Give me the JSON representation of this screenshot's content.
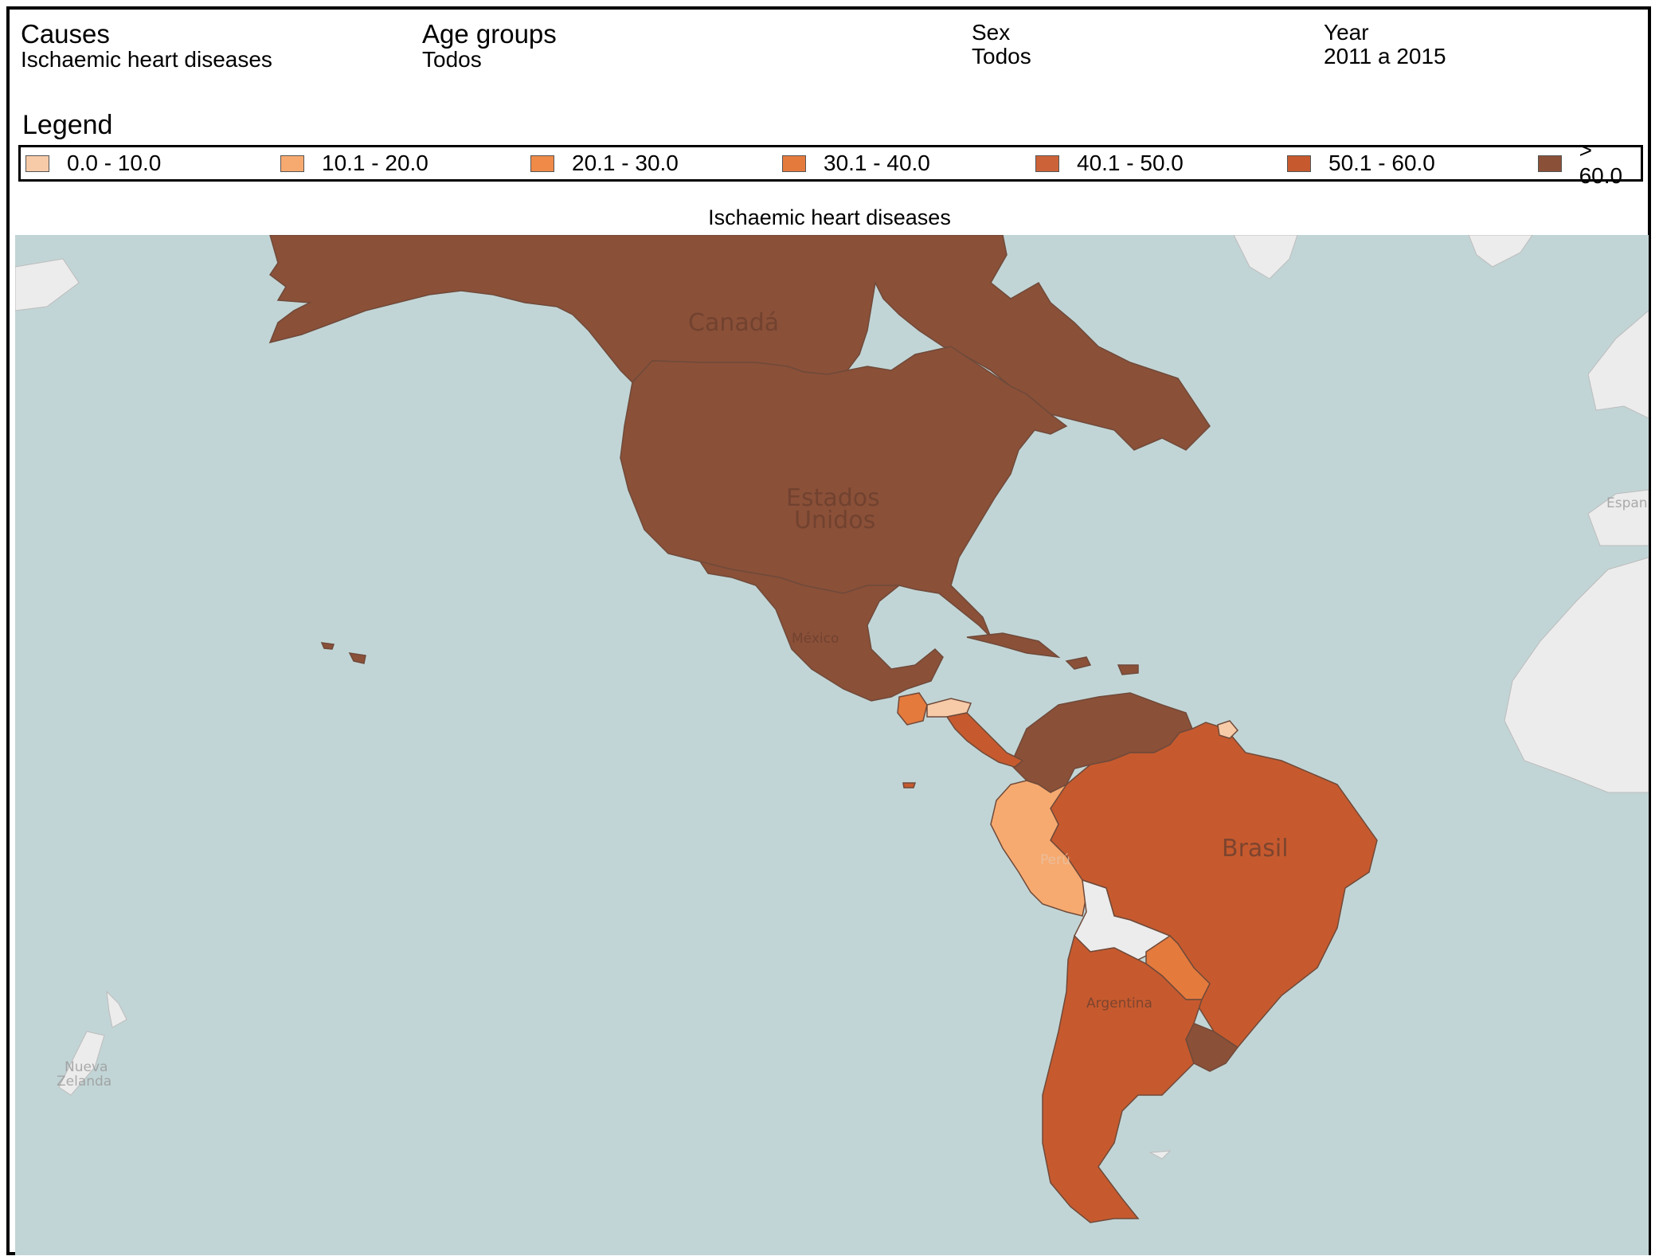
{
  "filters": {
    "causes": {
      "label": "Causes",
      "value": "Ischaemic heart diseases"
    },
    "age_groups": {
      "label": "Age groups",
      "value": "Todos"
    },
    "sex": {
      "label": "Sex",
      "value": "Todos"
    },
    "year": {
      "label": "Year",
      "value": "2011 a 2015"
    }
  },
  "legend": {
    "title": "Legend",
    "items": [
      {
        "label": "0.0 - 10.0",
        "color": "#f7cba8"
      },
      {
        "label": "10.1 - 20.0",
        "color": "#f7aa70"
      },
      {
        "label": "20.1 - 30.0",
        "color": "#ef8a48"
      },
      {
        "label": "30.1 - 40.0",
        "color": "#e57a3d"
      },
      {
        "label": "40.1 - 50.0",
        "color": "#cc6338"
      },
      {
        "label": "50.1 - 60.0",
        "color": "#c65a2e"
      },
      {
        "label": "> 60.0",
        "color": "#8b5038"
      }
    ]
  },
  "map": {
    "title": "Ischaemic heart diseases",
    "colors": {
      "ocean": "#c2d5d6",
      "other_land": "#ececec",
      "no_data": "#ececec"
    },
    "labels": [
      "Canadá",
      "Estados",
      "Unidos",
      "México",
      "Brasil",
      "Perú",
      "Argentina",
      "Nueva",
      "Zelanda",
      "Espan"
    ],
    "regions": [
      {
        "name": "Canada / Alaska",
        "class": "> 60.0"
      },
      {
        "name": "Estados Unidos",
        "class": "> 60.0"
      },
      {
        "name": "México",
        "class": "> 60.0"
      },
      {
        "name": "Cuba / Caribbean",
        "class": "> 60.0"
      },
      {
        "name": "Venezuela / Colombia",
        "class": "> 60.0"
      },
      {
        "name": "Brasil",
        "class": "50.1 - 60.0"
      },
      {
        "name": "Perú",
        "class": "10.1 - 20.0"
      },
      {
        "name": "Bolivia",
        "class": "no data"
      },
      {
        "name": "Paraguay",
        "class": "30.1 - 40.0"
      },
      {
        "name": "Argentina / Chile",
        "class": "50.1 - 60.0"
      },
      {
        "name": "Uruguay",
        "class": "> 60.0"
      },
      {
        "name": "Guatemala",
        "class": "30.1 - 40.0"
      },
      {
        "name": "Honduras",
        "class": "0.0 - 10.0"
      },
      {
        "name": "Nicaragua / Costa Rica / Panamá",
        "class": "50.1 - 60.0"
      },
      {
        "name": "French Guiana",
        "class": "0.0 - 10.0"
      }
    ]
  }
}
